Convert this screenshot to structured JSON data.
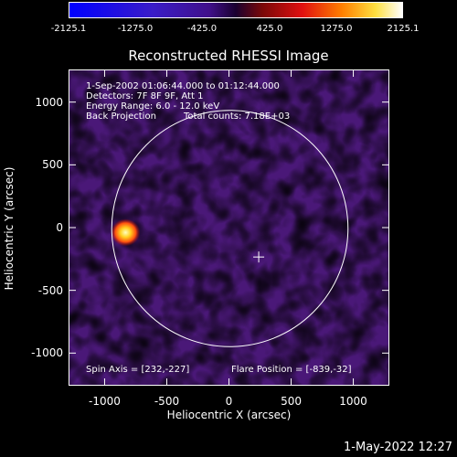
{
  "colorbar": {
    "ticks": [
      "-2125.1",
      "-1275.0",
      "-425.0",
      "425.0",
      "1275.0",
      "2125.1"
    ]
  },
  "title": "Reconstructed RHESSI Image",
  "info": {
    "time_range": "1-Sep-2002 01:06:44.000 to 01:12:44.000",
    "detectors": "Detectors: 7F 8F 9F, Att 1",
    "energy_range": "Energy Range: 6.0 - 12.0 keV",
    "method": "Back Projection",
    "total_counts": "Total counts: 7.18E+03",
    "spin_axis": "Spin Axis = [232,-227]",
    "flare_position": "Flare Position = [-839,-32]"
  },
  "axes": {
    "xlabel": "Heliocentric X (arcsec)",
    "ylabel": "Heliocentric Y (arcsec)",
    "xticks": [
      -1000,
      -500,
      0,
      500,
      1000
    ],
    "yticks": [
      1000,
      500,
      0,
      -500,
      -1000
    ],
    "xlim": [
      -1290,
      1290
    ],
    "ylim": [
      -1260,
      1260
    ]
  },
  "solar_limb_radius": 950,
  "spin_axis_marker": [
    232,
    -227
  ],
  "bright_source": [
    -839,
    -32
  ],
  "timestamp": "1-May-2022 12:27"
}
